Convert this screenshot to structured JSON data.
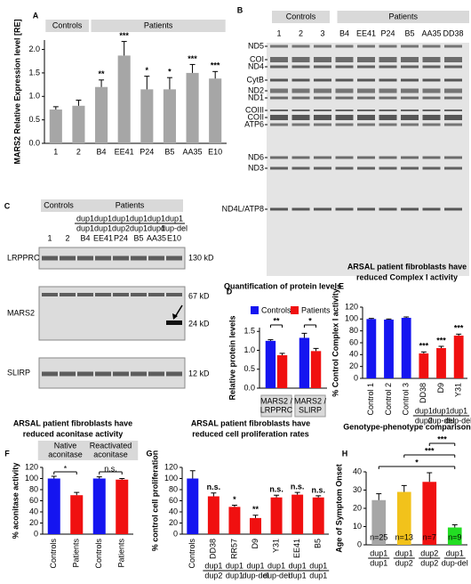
{
  "chart_data": [
    {
      "panel": "A",
      "type": "bar",
      "ylabel": "MARS2 Relative Expression level [RE]",
      "groups": [
        "Controls",
        "Patients"
      ],
      "categories": [
        "1",
        "2",
        "B4",
        "EE41",
        "P24",
        "B5",
        "AA35",
        "E10"
      ],
      "values": [
        0.72,
        0.8,
        1.2,
        1.87,
        1.15,
        1.15,
        1.5,
        1.38
      ],
      "errors": [
        0.06,
        0.12,
        0.15,
        0.3,
        0.28,
        0.25,
        0.18,
        0.15
      ],
      "annotations": [
        null,
        null,
        "**",
        "***",
        "*",
        "*",
        "***",
        "***"
      ],
      "color": "#a6a6a6",
      "ylim": [
        0,
        2.2
      ],
      "yticks": [
        {
          "value": 0,
          "label": "0.0"
        },
        {
          "value": 0.5,
          "label": "0.5"
        },
        {
          "value": 1,
          "label": "1.0"
        },
        {
          "value": 1.5,
          "label": "1.5"
        },
        {
          "value": 2,
          "label": "2.0"
        }
      ]
    },
    {
      "panel": "B",
      "type": "gel",
      "groups": [
        "Controls",
        "Patients"
      ],
      "lanes": [
        "1",
        "2",
        "3",
        "B4",
        "EE41",
        "P24",
        "B5",
        "AA35",
        "DD38"
      ],
      "bands": [
        "ND5",
        "COI",
        "ND4",
        "CytB",
        "ND2",
        "ND1",
        "COIII",
        "COII",
        "ATP6",
        "ND6",
        "ND3",
        "ND4L/ATP8"
      ]
    },
    {
      "panel": "C",
      "type": "blot",
      "groups": [
        "Controls",
        "Patients"
      ],
      "lanes": [
        "1",
        "2",
        "B4",
        "EE41",
        "P24",
        "B5",
        "AA35",
        "E10"
      ],
      "genotypes": [
        null,
        null,
        [
          "dup1",
          "dup1"
        ],
        [
          "dup1",
          "dup1"
        ],
        [
          "dup1",
          "dup2"
        ],
        [
          "dup1",
          "dup1"
        ],
        [
          "dup1",
          "dup1"
        ],
        [
          "dup1",
          "dup-del"
        ]
      ],
      "rows": [
        "LRPPRC",
        "MARS2",
        "SLIRP"
      ],
      "sizes": [
        "130 kD",
        "67 kD",
        "24 kD",
        "12 kD"
      ]
    },
    {
      "panel": "D",
      "type": "grouped_bar",
      "title": [
        "Quantification of protein levels"
      ],
      "ylabel": "Relative protein levels",
      "categories": [
        [
          "MARS2 /",
          "LRPPRC"
        ],
        [
          "MARS2 /",
          "SLIRP"
        ]
      ],
      "series": [
        {
          "name": "Controls",
          "color": "#1515f0",
          "values": [
            1.25,
            1.33
          ],
          "errors": [
            0.03,
            0.12
          ]
        },
        {
          "name": "Patients",
          "color": "#f01010",
          "values": [
            0.87,
            0.98
          ],
          "errors": [
            0.05,
            0.07
          ]
        }
      ],
      "group_significance": [
        "**",
        "*"
      ],
      "ylim": [
        0,
        1.6
      ],
      "yticks": [
        {
          "value": 0,
          "label": "0.0"
        },
        {
          "value": 0.5,
          "label": "0.5"
        },
        {
          "value": 1,
          "label": "1.0"
        },
        {
          "value": 1.5,
          "label": "1.5"
        }
      ]
    },
    {
      "panel": "E",
      "type": "bar",
      "title": [
        "ARSAL patient fibroblasts have",
        "reduced Complex I activity"
      ],
      "ylabel": "% Control Complex I activity",
      "categories": [
        "Control 1",
        "Control 2",
        "Control 3",
        "DD38",
        "D9",
        "Y31"
      ],
      "genotypes": [
        null,
        null,
        null,
        [
          "dup1",
          "dup2"
        ],
        [
          "dup1",
          "dup-del"
        ],
        [
          "dup1",
          "dup-del"
        ]
      ],
      "values": [
        100,
        99,
        102,
        42,
        51,
        72
      ],
      "errors": [
        1,
        1,
        1.5,
        2.5,
        3,
        2.5
      ],
      "annotations": [
        null,
        null,
        null,
        "***",
        "***",
        "***"
      ],
      "colors": [
        "#1515f0",
        "#1515f0",
        "#1515f0",
        "#f01010",
        "#f01010",
        "#f01010"
      ],
      "ylim": [
        0,
        120
      ],
      "yticks": [
        0,
        20,
        40,
        60,
        80,
        100,
        120
      ]
    },
    {
      "panel": "F",
      "type": "bar",
      "title": [
        "ARSAL patient fibroblasts have",
        "reduced aconitase activity"
      ],
      "ylabel": "% aconitase activity",
      "categories": [
        "Controls",
        "Patients",
        "Controls",
        "Patients"
      ],
      "pair_headers": [
        [
          "Native",
          "aconitase"
        ],
        [
          "Reactivated",
          "aconitase"
        ]
      ],
      "pair_significance": [
        "*",
        "n.s."
      ],
      "values": [
        100,
        70,
        100,
        98
      ],
      "errors": [
        4,
        5,
        3,
        2
      ],
      "colors": [
        "#1515f0",
        "#f01010",
        "#1515f0",
        "#f01010"
      ],
      "ylim": [
        0,
        120
      ],
      "yticks": [
        0,
        20,
        40,
        60,
        80,
        100,
        120
      ]
    },
    {
      "panel": "G",
      "type": "bar",
      "title": [
        "ARSAL patient fibroblasts have",
        "reduced cell proliferation rates"
      ],
      "ylabel": "% control cell proliferation",
      "categories": [
        "Controls",
        "DD38",
        "RR57",
        "D9",
        "Y31",
        "EE41",
        "B5"
      ],
      "genotypes": [
        null,
        [
          "dup1",
          "dup2"
        ],
        [
          "dup1",
          "dup1"
        ],
        [
          "dup1",
          "dup-del"
        ],
        [
          "dup1",
          "dup-del"
        ],
        [
          "dup1",
          "dup1"
        ],
        [
          "dup1",
          "dup1"
        ]
      ],
      "values": [
        100,
        68,
        49,
        29,
        66,
        71,
        66
      ],
      "errors": [
        14,
        6,
        3,
        5,
        4,
        4,
        3
      ],
      "annotations": [
        null,
        "n.s.",
        "*",
        "**",
        "n.s.",
        "n.s.",
        "n.s."
      ],
      "colors": [
        "#1515f0",
        "#f01010",
        "#f01010",
        "#f01010",
        "#f01010",
        "#f01010",
        "#f01010"
      ],
      "ylim": [
        0,
        120
      ],
      "yticks": [
        0,
        20,
        40,
        60,
        80,
        100,
        120
      ]
    },
    {
      "panel": "H",
      "type": "bar",
      "title": [
        "Genotype-phenotype comparison"
      ],
      "ylabel": "Age of Symptom Onset",
      "categories": [
        [
          "dup1",
          "dup1"
        ],
        [
          "dup1",
          "dup2"
        ],
        [
          "dup2",
          "dup2"
        ],
        [
          "dup1",
          "dup-del"
        ]
      ],
      "values": [
        24.5,
        29,
        34.5,
        9.5
      ],
      "errors": [
        3.5,
        3.5,
        5,
        1.5
      ],
      "n_labels": [
        "n=25",
        "n=13",
        "n=7",
        "n=9"
      ],
      "comparisons": [
        {
          "label": "***",
          "pair": [
            2,
            3
          ]
        },
        {
          "label": "***",
          "pair": [
            1,
            3
          ]
        },
        {
          "label": "*",
          "pair": [
            0,
            3
          ]
        }
      ],
      "colors": [
        "#a6a6a6",
        "#f2c21b",
        "#f01010",
        "#22dd22"
      ],
      "ylim": [
        0,
        40
      ],
      "yticks": [
        0,
        10,
        20,
        30,
        40
      ]
    }
  ]
}
